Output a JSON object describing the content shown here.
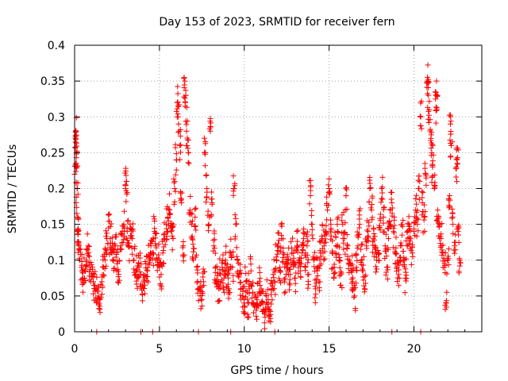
{
  "chart_data": {
    "type": "scatter",
    "title": "Day 153 of 2023, SRMTID for receiver fern",
    "xlabel": "GPS time / hours",
    "ylabel": "SRMTID / TECUs",
    "xlim": [
      0,
      24
    ],
    "ylim": [
      0,
      0.4
    ],
    "x_ticks": [
      0,
      5,
      10,
      15,
      20
    ],
    "y_ticks": [
      0,
      0.05,
      0.1,
      0.15,
      0.2,
      0.25,
      0.3,
      0.35,
      0.4
    ],
    "x_tick_labels": [
      "0",
      "5",
      "10",
      "15",
      "20"
    ],
    "y_tick_labels": [
      "0",
      "0.05",
      "0.1",
      "0.15",
      "0.2",
      "0.25",
      "0.3",
      "0.35",
      "0.4"
    ],
    "grid": true,
    "marker": "plus",
    "marker_color": "#ff0000",
    "zero_points_x": [
      1.3,
      3.9,
      4.6,
      7.3,
      9.2,
      11.8,
      18.7,
      20.4
    ],
    "series": [
      {
        "name": "SRMTID",
        "points": [
          [
            0.0,
            0.22
          ],
          [
            0.05,
            0.27
          ],
          [
            0.08,
            0.28
          ],
          [
            0.1,
            0.25
          ],
          [
            0.12,
            0.23
          ],
          [
            0.15,
            0.2
          ],
          [
            0.18,
            0.16
          ],
          [
            0.2,
            0.14
          ],
          [
            0.25,
            0.12
          ],
          [
            0.3,
            0.1
          ],
          [
            0.4,
            0.09
          ],
          [
            0.5,
            0.075
          ],
          [
            0.6,
            0.085
          ],
          [
            0.7,
            0.1
          ],
          [
            0.8,
            0.12
          ],
          [
            0.9,
            0.09
          ],
          [
            1.0,
            0.08
          ],
          [
            1.1,
            0.07
          ],
          [
            1.2,
            0.065
          ],
          [
            1.3,
            0.06
          ],
          [
            1.4,
            0.05
          ],
          [
            1.5,
            0.045
          ],
          [
            1.6,
            0.07
          ],
          [
            1.7,
            0.09
          ],
          [
            1.8,
            0.1
          ],
          [
            1.9,
            0.13
          ],
          [
            2.0,
            0.145
          ],
          [
            2.1,
            0.13
          ],
          [
            2.2,
            0.11
          ],
          [
            2.3,
            0.1
          ],
          [
            2.4,
            0.12
          ],
          [
            2.5,
            0.095
          ],
          [
            2.6,
            0.08
          ],
          [
            2.7,
            0.12
          ],
          [
            2.8,
            0.135
          ],
          [
            2.9,
            0.15
          ],
          [
            3.0,
            0.2
          ],
          [
            3.05,
            0.21
          ],
          [
            3.1,
            0.14
          ],
          [
            3.2,
            0.12
          ],
          [
            3.3,
            0.145
          ],
          [
            3.4,
            0.13
          ],
          [
            3.5,
            0.1
          ],
          [
            3.6,
            0.085
          ],
          [
            3.7,
            0.075
          ],
          [
            3.8,
            0.09
          ],
          [
            3.9,
            0.08
          ],
          [
            4.0,
            0.065
          ],
          [
            4.1,
            0.07
          ],
          [
            4.2,
            0.095
          ],
          [
            4.3,
            0.085
          ],
          [
            4.4,
            0.1
          ],
          [
            4.5,
            0.12
          ],
          [
            4.6,
            0.11
          ],
          [
            4.7,
            0.14
          ],
          [
            4.8,
            0.12
          ],
          [
            4.9,
            0.1
          ],
          [
            5.0,
            0.09
          ],
          [
            5.1,
            0.08
          ],
          [
            5.2,
            0.11
          ],
          [
            5.3,
            0.13
          ],
          [
            5.4,
            0.15
          ],
          [
            5.5,
            0.16
          ],
          [
            5.6,
            0.17
          ],
          [
            5.7,
            0.14
          ],
          [
            5.8,
            0.13
          ],
          [
            5.9,
            0.2
          ],
          [
            6.0,
            0.24
          ],
          [
            6.05,
            0.32
          ],
          [
            6.1,
            0.3
          ],
          [
            6.2,
            0.26
          ],
          [
            6.3,
            0.18
          ],
          [
            6.4,
            0.12
          ],
          [
            6.5,
            0.35
          ],
          [
            6.55,
            0.33
          ],
          [
            6.6,
            0.28
          ],
          [
            6.7,
            0.25
          ],
          [
            6.8,
            0.17
          ],
          [
            6.9,
            0.15
          ],
          [
            7.0,
            0.1
          ],
          [
            7.1,
            0.16
          ],
          [
            7.2,
            0.09
          ],
          [
            7.3,
            0.06
          ],
          [
            7.4,
            0.05
          ],
          [
            7.5,
            0.045
          ],
          [
            7.6,
            0.07
          ],
          [
            7.7,
            0.25
          ],
          [
            7.8,
            0.2
          ],
          [
            7.9,
            0.15
          ],
          [
            8.0,
            0.28
          ],
          [
            8.1,
            0.18
          ],
          [
            8.2,
            0.12
          ],
          [
            8.3,
            0.09
          ],
          [
            8.4,
            0.07
          ],
          [
            8.5,
            0.06
          ],
          [
            8.6,
            0.08
          ],
          [
            8.7,
            0.09
          ],
          [
            8.8,
            0.075
          ],
          [
            8.9,
            0.1
          ],
          [
            9.0,
            0.08
          ],
          [
            9.1,
            0.06
          ],
          [
            9.2,
            0.11
          ],
          [
            9.3,
            0.09
          ],
          [
            9.4,
            0.2
          ],
          [
            9.5,
            0.15
          ],
          [
            9.6,
            0.1
          ],
          [
            9.7,
            0.08
          ],
          [
            9.8,
            0.06
          ],
          [
            9.9,
            0.05
          ],
          [
            10.0,
            0.045
          ],
          [
            10.1,
            0.07
          ],
          [
            10.2,
            0.04
          ],
          [
            10.3,
            0.06
          ],
          [
            10.4,
            0.085
          ],
          [
            10.5,
            0.055
          ],
          [
            10.6,
            0.035
          ],
          [
            10.7,
            0.03
          ],
          [
            10.8,
            0.05
          ],
          [
            10.9,
            0.07
          ],
          [
            11.0,
            0.06
          ],
          [
            11.1,
            0.04
          ],
          [
            11.2,
            0.025
          ],
          [
            11.3,
            0.05
          ],
          [
            11.4,
            0.045
          ],
          [
            11.5,
            0.03
          ],
          [
            11.6,
            0.06
          ],
          [
            11.7,
            0.08
          ],
          [
            11.8,
            0.07
          ],
          [
            11.9,
            0.1
          ],
          [
            12.0,
            0.12
          ],
          [
            12.1,
            0.09
          ],
          [
            12.2,
            0.13
          ],
          [
            12.3,
            0.11
          ],
          [
            12.4,
            0.075
          ],
          [
            12.5,
            0.09
          ],
          [
            12.6,
            0.1
          ],
          [
            12.7,
            0.08
          ],
          [
            12.8,
            0.11
          ],
          [
            12.9,
            0.095
          ],
          [
            13.0,
            0.075
          ],
          [
            13.1,
            0.12
          ],
          [
            13.2,
            0.1
          ],
          [
            13.3,
            0.085
          ],
          [
            13.4,
            0.11
          ],
          [
            13.5,
            0.13
          ],
          [
            13.6,
            0.09
          ],
          [
            13.7,
            0.12
          ],
          [
            13.8,
            0.08
          ],
          [
            13.9,
            0.19
          ],
          [
            14.0,
            0.15
          ],
          [
            14.1,
            0.1
          ],
          [
            14.2,
            0.06
          ],
          [
            14.3,
            0.085
          ],
          [
            14.4,
            0.07
          ],
          [
            14.5,
            0.11
          ],
          [
            14.6,
            0.13
          ],
          [
            14.7,
            0.12
          ],
          [
            14.8,
            0.14
          ],
          [
            14.9,
            0.17
          ],
          [
            15.0,
            0.2
          ],
          [
            15.1,
            0.15
          ],
          [
            15.2,
            0.11
          ],
          [
            15.3,
            0.09
          ],
          [
            15.4,
            0.12
          ],
          [
            15.5,
            0.14
          ],
          [
            15.6,
            0.1
          ],
          [
            15.7,
            0.08
          ],
          [
            15.8,
            0.15
          ],
          [
            15.9,
            0.13
          ],
          [
            16.0,
            0.19
          ],
          [
            16.1,
            0.12
          ],
          [
            16.2,
            0.1
          ],
          [
            16.3,
            0.085
          ],
          [
            16.4,
            0.07
          ],
          [
            16.5,
            0.05
          ],
          [
            16.6,
            0.09
          ],
          [
            16.7,
            0.12
          ],
          [
            16.8,
            0.15
          ],
          [
            16.9,
            0.1
          ],
          [
            17.0,
            0.085
          ],
          [
            17.1,
            0.06
          ],
          [
            17.2,
            0.12
          ],
          [
            17.3,
            0.14
          ],
          [
            17.4,
            0.2
          ],
          [
            17.5,
            0.17
          ],
          [
            17.6,
            0.13
          ],
          [
            17.7,
            0.12
          ],
          [
            17.8,
            0.1
          ],
          [
            17.9,
            0.11
          ],
          [
            18.0,
            0.145
          ],
          [
            18.1,
            0.2
          ],
          [
            18.2,
            0.16
          ],
          [
            18.3,
            0.12
          ],
          [
            18.4,
            0.09
          ],
          [
            18.5,
            0.13
          ],
          [
            18.6,
            0.15
          ],
          [
            18.7,
            0.18
          ],
          [
            18.8,
            0.14
          ],
          [
            18.9,
            0.11
          ],
          [
            19.0,
            0.09
          ],
          [
            19.1,
            0.08
          ],
          [
            19.2,
            0.12
          ],
          [
            19.3,
            0.135
          ],
          [
            19.4,
            0.1
          ],
          [
            19.5,
            0.075
          ],
          [
            19.6,
            0.12
          ],
          [
            19.7,
            0.15
          ],
          [
            19.8,
            0.13
          ],
          [
            19.9,
            0.11
          ],
          [
            20.0,
            0.14
          ],
          [
            20.1,
            0.17
          ],
          [
            20.2,
            0.15
          ],
          [
            20.3,
            0.2
          ],
          [
            20.4,
            0.3
          ],
          [
            20.5,
            0.18
          ],
          [
            20.6,
            0.16
          ],
          [
            20.7,
            0.22
          ],
          [
            20.8,
            0.35
          ],
          [
            20.85,
            0.33
          ],
          [
            20.9,
            0.31
          ],
          [
            21.0,
            0.27
          ],
          [
            21.05,
            0.25
          ],
          [
            21.1,
            0.23
          ],
          [
            21.2,
            0.2
          ],
          [
            21.3,
            0.33
          ],
          [
            21.35,
            0.31
          ],
          [
            21.4,
            0.17
          ],
          [
            21.5,
            0.15
          ],
          [
            21.6,
            0.13
          ],
          [
            21.7,
            0.11
          ],
          [
            21.8,
            0.09
          ],
          [
            21.9,
            0.04
          ],
          [
            22.0,
            0.1
          ],
          [
            22.1,
            0.19
          ],
          [
            22.15,
            0.29
          ],
          [
            22.2,
            0.26
          ],
          [
            22.3,
            0.15
          ],
          [
            22.4,
            0.12
          ],
          [
            22.5,
            0.23
          ],
          [
            22.55,
            0.235
          ],
          [
            22.6,
            0.14
          ],
          [
            22.7,
            0.1
          ]
        ]
      }
    ]
  }
}
